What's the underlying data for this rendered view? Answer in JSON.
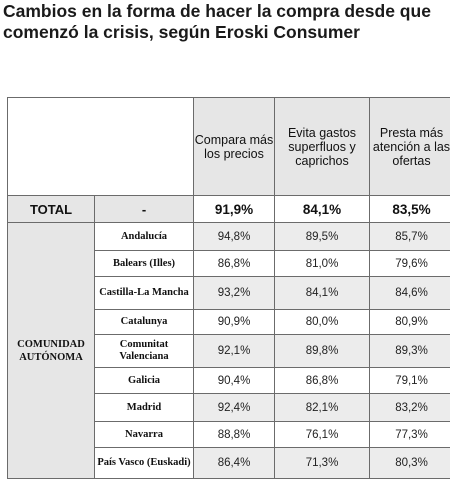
{
  "title": "Cambios en la forma de hacer la compra desde que comenzó la crisis, según Eroski Consumer",
  "columns": [
    "Compara más los precios",
    "Evita gastos superfluos y caprichos",
    "Presta más atención a las ofertas"
  ],
  "total": {
    "label": "TOTAL",
    "dash": "-",
    "values": [
      "91,9%",
      "84,1%",
      "83,5%"
    ]
  },
  "group_label": "COMUNIDAD AUTÓNOMA",
  "rows": [
    {
      "region": "Andalucía",
      "values": [
        "94,8%",
        "89,5%",
        "85,7%"
      ]
    },
    {
      "region": "Balears (Illes)",
      "values": [
        "86,8%",
        "81,0%",
        "79,6%"
      ]
    },
    {
      "region": "Castilla-La Mancha",
      "values": [
        "93,2%",
        "84,1%",
        "84,6%"
      ]
    },
    {
      "region": "Catalunya",
      "values": [
        "90,9%",
        "80,0%",
        "80,9%"
      ]
    },
    {
      "region": "Comunitat Valenciana",
      "values": [
        "92,1%",
        "89,8%",
        "89,3%"
      ]
    },
    {
      "region": "Galicia",
      "values": [
        "90,4%",
        "86,8%",
        "79,1%"
      ]
    },
    {
      "region": "Madrid",
      "values": [
        "92,4%",
        "82,1%",
        "83,2%"
      ]
    },
    {
      "region": "Navarra",
      "values": [
        "88,8%",
        "76,1%",
        "77,3%"
      ]
    },
    {
      "region": "País Vasco (Euskadi)",
      "values": [
        "86,4%",
        "71,3%",
        "80,3%"
      ]
    }
  ]
}
